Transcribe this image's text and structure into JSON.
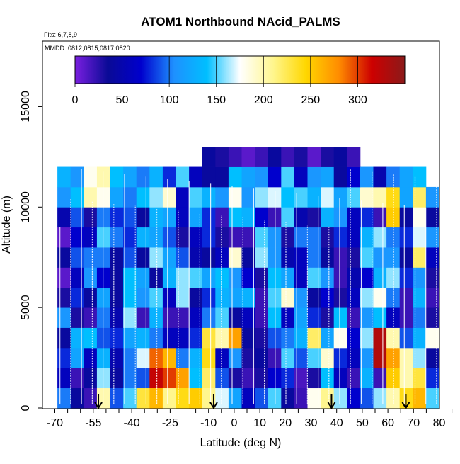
{
  "chart_data": {
    "type": "heatmap",
    "title": "ATOM1 Northbound NAcid_PALMS",
    "flights_note": "Flts: 6,7,8,9",
    "dates_note": "MMDD: 0812,0815,0817,0820",
    "xlabel": "Latitude (deg N)",
    "ylabel": "Altitude (m)",
    "xlim": [
      -70,
      85
    ],
    "ylim": [
      0,
      17500
    ],
    "x_ticks": [
      -70,
      -55,
      -40,
      -25,
      -10,
      0,
      10,
      20,
      30,
      40,
      50,
      60,
      70,
      80
    ],
    "x_tick_labels": [
      "-70",
      "-55",
      "-40",
      "-25",
      "-10",
      "0",
      "10",
      "20",
      "30",
      "40",
      "50",
      "60",
      "70",
      "80"
    ],
    "x_minor_step": 5,
    "y_ticks": [
      0,
      5000,
      10000,
      15000
    ],
    "y_tick_labels": [
      "0",
      "5000",
      "10000",
      "15000"
    ],
    "colorbar": {
      "range": [
        0,
        350
      ],
      "ticks": [
        0,
        50,
        100,
        150,
        200,
        250,
        300
      ],
      "tick_labels": [
        "0",
        "50",
        "100",
        "150",
        "200",
        "250",
        "300"
      ],
      "stops": [
        "#7a1fe0",
        "#0a0a96",
        "#0000cd",
        "#1e90ff",
        "#00bfff",
        "#ffffff",
        "#fff68f",
        "#ffd700",
        "#ff8c00",
        "#cd0000",
        "#8b1a1a"
      ]
    },
    "flight_markers_lat": [
      -53,
      -8,
      38,
      67
    ],
    "data_lat_range": [
      -69,
      80
    ],
    "layers": [
      {
        "alt": [
          0,
          1000
        ],
        "values": [
          100,
          40,
          20,
          200,
          90,
          150,
          230,
          260,
          210,
          240,
          250,
          210,
          170,
          120,
          60,
          90,
          150,
          40,
          20,
          180,
          210,
          160,
          70,
          90,
          160,
          200,
          240,
          260,
          150
        ]
      },
      {
        "alt": [
          1000,
          2000
        ],
        "values": [
          60,
          20,
          40,
          160,
          40,
          100,
          90,
          320,
          300,
          270,
          140,
          220,
          90,
          30,
          20,
          30,
          70,
          80,
          15,
          30,
          140,
          60,
          20,
          130,
          20,
          250,
          200,
          230,
          80
        ]
      },
      {
        "alt": [
          2000,
          3000
        ],
        "values": [
          80,
          120,
          60,
          130,
          50,
          100,
          170,
          290,
          260,
          100,
          130,
          240,
          60,
          110,
          30,
          40,
          20,
          150,
          90,
          150,
          190,
          80,
          60,
          110,
          330,
          270,
          200,
          160,
          40
        ]
      },
      {
        "alt": [
          3000,
          4000
        ],
        "values": [
          40,
          130,
          140,
          90,
          80,
          120,
          130,
          100,
          60,
          60,
          80,
          230,
          200,
          270,
          40,
          30,
          90,
          100,
          130,
          220,
          120,
          180,
          70,
          160,
          330,
          200,
          90,
          130,
          180
        ]
      },
      {
        "alt": [
          4000,
          5000
        ],
        "values": [
          110,
          30,
          20,
          100,
          50,
          160,
          20,
          130,
          20,
          20,
          60,
          100,
          150,
          40,
          60,
          20,
          140,
          60,
          120,
          80,
          30,
          140,
          20,
          110,
          140,
          60,
          20,
          100,
          30
        ]
      },
      {
        "alt": [
          5000,
          6000
        ],
        "values": [
          30,
          80,
          40,
          120,
          40,
          140,
          110,
          150,
          60,
          160,
          40,
          80,
          130,
          120,
          130,
          20,
          150,
          190,
          110,
          40,
          70,
          30,
          60,
          160,
          180,
          100,
          20,
          130,
          20
        ]
      },
      {
        "alt": [
          6000,
          7000
        ],
        "values": [
          10,
          60,
          110,
          70,
          40,
          140,
          120,
          40,
          130,
          160,
          150,
          120,
          140,
          110,
          70,
          30,
          140,
          120,
          60,
          150,
          110,
          20,
          50,
          70,
          130,
          160,
          80,
          110,
          30
        ]
      },
      {
        "alt": [
          7000,
          8000
        ],
        "values": [
          40,
          90,
          100,
          100,
          40,
          90,
          40,
          160,
          120,
          90,
          50,
          40,
          60,
          190,
          40,
          160,
          110,
          50,
          60,
          100,
          40,
          20,
          30,
          150,
          110,
          110,
          40,
          220,
          60
        ]
      },
      {
        "alt": [
          8000,
          9000
        ],
        "values": [
          10,
          70,
          60,
          150,
          100,
          80,
          130,
          120,
          90,
          30,
          60,
          80,
          30,
          20,
          20,
          150,
          110,
          30,
          100,
          100,
          30,
          80,
          60,
          130,
          160,
          100,
          80,
          170,
          110
        ]
      },
      {
        "alt": [
          9000,
          10000
        ],
        "values": [
          50,
          90,
          30,
          100,
          80,
          90,
          40,
          130,
          120,
          60,
          120,
          80,
          20,
          140,
          130,
          70,
          20,
          150,
          50,
          30,
          130,
          110,
          60,
          80,
          20,
          250,
          40,
          180,
          40
        ]
      },
      {
        "alt": [
          10000,
          11000
        ],
        "values": [
          110,
          140,
          200,
          180,
          120,
          100,
          140,
          160,
          190,
          60,
          150,
          130,
          110,
          180,
          110,
          160,
          170,
          140,
          150,
          130,
          170,
          120,
          150,
          190,
          200,
          240,
          120,
          220,
          110
        ]
      },
      {
        "alt": [
          11000,
          12000
        ],
        "values": [
          130,
          110,
          180,
          200,
          140,
          120,
          100,
          130,
          80,
          150,
          60,
          40,
          40,
          140,
          120,
          110,
          70,
          150,
          60,
          110,
          120,
          40,
          70,
          110,
          50,
          100,
          120,
          140,
          0
        ]
      },
      {
        "alt": [
          12000,
          13000
        ],
        "values": [
          0,
          0,
          0,
          0,
          0,
          0,
          0,
          0,
          0,
          0,
          0,
          40,
          30,
          20,
          10,
          20,
          40,
          20,
          30,
          10,
          30,
          40,
          20,
          0,
          0,
          0,
          0,
          0,
          0
        ]
      }
    ]
  }
}
